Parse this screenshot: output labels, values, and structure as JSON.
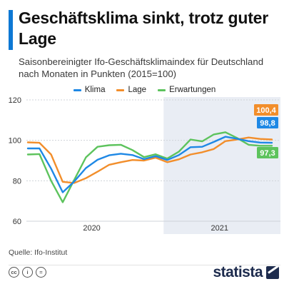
{
  "title": "Geschäftsklima sinkt, trotz guter Lage",
  "subtitle": "Saisonbereinigter Ifo-Geschäftsklimaindex für Deutschland nach Monaten in Punkten (2015=100)",
  "source": "Quelle: Ifo-Institut",
  "brand": "statista",
  "license_icons": [
    "cc-icon",
    "person-icon",
    "equal-icon"
  ],
  "license_labels": [
    "cc",
    "i",
    "="
  ],
  "chart_data": {
    "type": "line",
    "x": [
      "2020-01",
      "2020-02",
      "2020-03",
      "2020-04",
      "2020-05",
      "2020-06",
      "2020-07",
      "2020-08",
      "2020-09",
      "2020-10",
      "2020-11",
      "2020-12",
      "2021-01",
      "2021-02",
      "2021-03",
      "2021-04",
      "2021-05",
      "2021-06",
      "2021-07",
      "2021-08",
      "2021-09",
      "2021-10"
    ],
    "x_tick_labels": [
      "2020",
      "2021"
    ],
    "highlight_period": "2021",
    "ylim": [
      60,
      120
    ],
    "yticks": [
      60,
      80,
      100,
      120
    ],
    "grid": true,
    "legend_position": "top-center",
    "series": [
      {
        "name": "Klima",
        "color": "#1e88e5",
        "values": [
          96.0,
          96.0,
          86.0,
          74.3,
          79.7,
          86.3,
          90.4,
          92.6,
          93.4,
          92.7,
          90.7,
          92.2,
          90.3,
          92.7,
          96.6,
          96.8,
          99.2,
          101.8,
          100.8,
          99.6,
          98.9,
          98.8
        ]
      },
      {
        "name": "Lage",
        "color": "#f28e2b",
        "values": [
          99.0,
          98.8,
          93.0,
          79.5,
          78.9,
          81.3,
          84.5,
          87.9,
          89.2,
          90.3,
          90.0,
          91.4,
          89.2,
          90.6,
          93.0,
          94.1,
          95.7,
          99.6,
          100.4,
          101.4,
          100.7,
          100.4
        ]
      },
      {
        "name": "Erwartungen",
        "color": "#5dc35d",
        "values": [
          93.0,
          93.2,
          80.0,
          69.4,
          80.5,
          91.6,
          96.8,
          97.6,
          97.8,
          95.2,
          91.7,
          93.1,
          91.0,
          94.4,
          100.4,
          99.5,
          102.9,
          104.0,
          101.2,
          97.8,
          97.3,
          97.3
        ]
      }
    ],
    "end_labels": [
      {
        "text": "100,4",
        "color": "#f28e2b"
      },
      {
        "text": "98,8",
        "color": "#1e88e5"
      },
      {
        "text": "97,3",
        "color": "#5dc35d"
      }
    ]
  }
}
